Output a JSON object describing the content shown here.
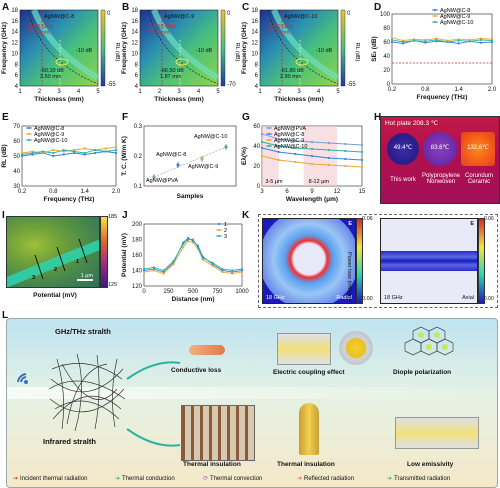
{
  "panel_letters": [
    "A",
    "B",
    "C",
    "D",
    "E",
    "F",
    "G",
    "H",
    "I",
    "J",
    "K",
    "L"
  ],
  "colors": {
    "c8": "#3a7fd5",
    "c9": "#e8a838",
    "c10": "#2bb3a0",
    "pva": "#7a9cc6",
    "red": "#d9262b",
    "rl_low": "#1a3ea6",
    "rl_high": "#e8c431"
  },
  "rl_maps": [
    {
      "sample": "AgNW@C-8",
      "ymin_label": "-55",
      "peak1": "(6.85 GHz",
      "peak1b": "2.30 mm",
      "peak2": "-50.10 dB",
      "peak2b": "3.50 mm",
      "contour": "-10 dB",
      "cmax": "0",
      "cmin": "-55",
      "rl_axis": "RL (dB)"
    },
    {
      "sample": "AgNW@C-9",
      "ymin_label": "-70",
      "peak1": "-70.10 GHz",
      "peak1b": "2.00 mm",
      "peak2": "-66.50 dB",
      "peak2b": "1.87 mm",
      "contour": "-10 dB",
      "cmax": "0",
      "cmin": "-70",
      "rl_axis": "RL (dB)"
    },
    {
      "sample": "AgNW@C-10",
      "ymin_label": "-55",
      "peak1": "-6.30 GHz",
      "peak1b": "2.32 mm",
      "peak2": "-51.80 dB",
      "peak2b": "2.90 mm",
      "contour": "-10 dB",
      "cmax": "0",
      "cmin": "-55",
      "rl_axis": "RL (dB)"
    }
  ],
  "rl_axes": {
    "xlabel": "Thickness (mm)",
    "ylabel": "Frequency (GHz)",
    "xticks": [
      "1",
      "2",
      "3",
      "4",
      "5"
    ],
    "yticks": [
      "4",
      "6",
      "8",
      "10",
      "12",
      "14",
      "16",
      "18"
    ]
  },
  "panel_d": {
    "ylabel": "SEₜ (dB)",
    "xlabel": "Frequency (THz)",
    "xticks": [
      "0.2",
      "0.8",
      "1.4",
      "2.0"
    ],
    "yticks": [
      "0",
      "20",
      "40",
      "60",
      "80",
      "100"
    ],
    "legend": [
      "AgNW@C-8",
      "AgNW@C-9",
      "AgNW@C-10"
    ]
  },
  "panel_e": {
    "ylabel": "RL (dB)",
    "xlabel": "Frequency (THz)",
    "xticks": [
      "0.2",
      "0.8",
      "1.4",
      "2.0"
    ],
    "yticks": [
      "30",
      "40",
      "50",
      "60",
      "70"
    ],
    "legend": [
      "AgNW@C-8",
      "AgNW@C-9",
      "AgNW@C-10"
    ]
  },
  "panel_f": {
    "ylabel": "T. C. (W/m K)",
    "xlabel": "Samples",
    "yticks": [
      "0.1",
      "0.2",
      "0.3"
    ],
    "labels": [
      "AgNW@PVA",
      "AgNW@C-8",
      "AgNW@C-9",
      "AgNW@C-10"
    ]
  },
  "panel_g": {
    "ylabel": "Eλ(%)",
    "xlabel": "Wavelength (μm)",
    "xticks": [
      "3",
      "6",
      "9",
      "12",
      "15"
    ],
    "yticks": [
      "0",
      "20",
      "40",
      "60"
    ],
    "legend": [
      "AgNW@PVA",
      "AgNW@C-8",
      "AgNW@C-9",
      "AgNW@C-10"
    ],
    "band1": "3-5 μm",
    "band2": "8-12 μm"
  },
  "panel_h": {
    "title": "Hot plate 208.3 ℃",
    "items": [
      {
        "temp": "49.4℃",
        "label": "This work"
      },
      {
        "temp": "83.6℃",
        "label": "Polypropylene\nNonwoven"
      },
      {
        "temp": "132.6℃",
        "label": "Corundum\nCeramic"
      }
    ]
  },
  "panel_i": {
    "xlabel": "Potential (mV)",
    "cmax": "185",
    "cmin": "125",
    "scale": "1 μm",
    "marks": [
      "1",
      "2",
      "3"
    ]
  },
  "panel_j": {
    "ylabel": "Potential (mV)",
    "xlabel": "Distance (nm)",
    "xticks": [
      "0",
      "250",
      "500",
      "750",
      "1000"
    ],
    "yticks": [
      "120",
      "140",
      "160",
      "180",
      "200"
    ],
    "legend": [
      "1",
      "2",
      "3"
    ]
  },
  "panel_k": {
    "left_freq": "18 GHz",
    "left_mode": "Radial",
    "right_freq": "18 GHz",
    "right_mode": "Axial",
    "cbar_label": "Power loss (mW/m³)",
    "cmax": "0.06",
    "cmin": "0.00",
    "e_label": "E"
  },
  "panel_l": {
    "ghz": "GHz/THz stralth",
    "ir": "Infrared stralth",
    "conductive": "Conductive loss",
    "electric": "Electric coupling effect",
    "diople": "Diople polarization",
    "thermal1": "Thermal insulation",
    "thermal2": "Thermal insulation",
    "lowem": "Low emissivity",
    "legend": [
      "Incident thermal radiation",
      "Thermal conduction",
      "Thermal convection",
      "Reflected radiation",
      "Transmitted radiation"
    ]
  },
  "chart_data": [
    {
      "type": "line",
      "title": "",
      "xlabel": "Frequency (THz)",
      "ylabel": "SEₜ (dB)",
      "ylim": [
        0,
        100
      ],
      "x": [
        0.2,
        0.4,
        0.6,
        0.8,
        1.0,
        1.2,
        1.4,
        1.6,
        1.8,
        2.0
      ],
      "series": [
        {
          "name": "AgNW@C-8",
          "values": [
            60,
            58,
            62,
            59,
            61,
            60,
            58,
            61,
            59,
            60
          ]
        },
        {
          "name": "AgNW@C-9",
          "values": [
            66,
            62,
            64,
            63,
            65,
            62,
            64,
            63,
            65,
            64
          ]
        },
        {
          "name": "AgNW@C-10",
          "values": [
            63,
            60,
            62,
            61,
            63,
            60,
            62,
            61,
            63,
            62
          ]
        }
      ]
    },
    {
      "type": "line",
      "title": "",
      "xlabel": "Frequency (THz)",
      "ylabel": "RL (dB)",
      "ylim": [
        30,
        70
      ],
      "x": [
        0.2,
        0.4,
        0.6,
        0.8,
        1.0,
        1.2,
        1.4,
        1.6,
        1.8,
        2.0
      ],
      "series": [
        {
          "name": "AgNW@C-8",
          "values": [
            50,
            51,
            52,
            50,
            51,
            52,
            51,
            52,
            53,
            52
          ]
        },
        {
          "name": "AgNW@C-9",
          "values": [
            52,
            53,
            52,
            54,
            53,
            54,
            55,
            54,
            55,
            56
          ]
        },
        {
          "name": "AgNW@C-10",
          "values": [
            51,
            52,
            53,
            52,
            54,
            53,
            52,
            54,
            53,
            54
          ]
        }
      ]
    },
    {
      "type": "scatter",
      "title": "",
      "xlabel": "Samples",
      "ylabel": "T. C. (W/m K)",
      "ylim": [
        0.1,
        0.3
      ],
      "categories": [
        "AgNW@PVA",
        "AgNW@C-8",
        "AgNW@C-9",
        "AgNW@C-10"
      ],
      "values": [
        0.13,
        0.17,
        0.19,
        0.23
      ]
    },
    {
      "type": "line",
      "title": "",
      "xlabel": "Wavelength (μm)",
      "ylabel": "Eλ(%)",
      "ylim": [
        0,
        60
      ],
      "x": [
        3,
        5,
        7,
        9,
        11,
        13,
        15
      ],
      "series": [
        {
          "name": "AgNW@PVA",
          "values": [
            52,
            47,
            45,
            44,
            43,
            42,
            41
          ]
        },
        {
          "name": "AgNW@C-8",
          "values": [
            38,
            34,
            32,
            30,
            28,
            27,
            26
          ]
        },
        {
          "name": "AgNW@C-9",
          "values": [
            30,
            26,
            24,
            22,
            21,
            20,
            19
          ]
        },
        {
          "name": "AgNW@C-10",
          "values": [
            44,
            40,
            38,
            37,
            36,
            35,
            34
          ]
        }
      ]
    },
    {
      "type": "line",
      "title": "",
      "xlabel": "Distance (nm)",
      "ylabel": "Potential (mV)",
      "ylim": [
        120,
        200
      ],
      "x": [
        0,
        100,
        200,
        300,
        400,
        450,
        500,
        550,
        600,
        700,
        800,
        900,
        1000
      ],
      "series": [
        {
          "name": "1",
          "values": [
            140,
            142,
            138,
            150,
            176,
            182,
            178,
            172,
            158,
            148,
            140,
            138,
            140
          ]
        },
        {
          "name": "2",
          "values": [
            138,
            140,
            136,
            148,
            170,
            178,
            176,
            168,
            154,
            146,
            138,
            136,
            138
          ]
        },
        {
          "name": "3",
          "values": [
            142,
            144,
            140,
            152,
            174,
            180,
            180,
            170,
            156,
            150,
            142,
            140,
            142
          ]
        }
      ]
    }
  ]
}
